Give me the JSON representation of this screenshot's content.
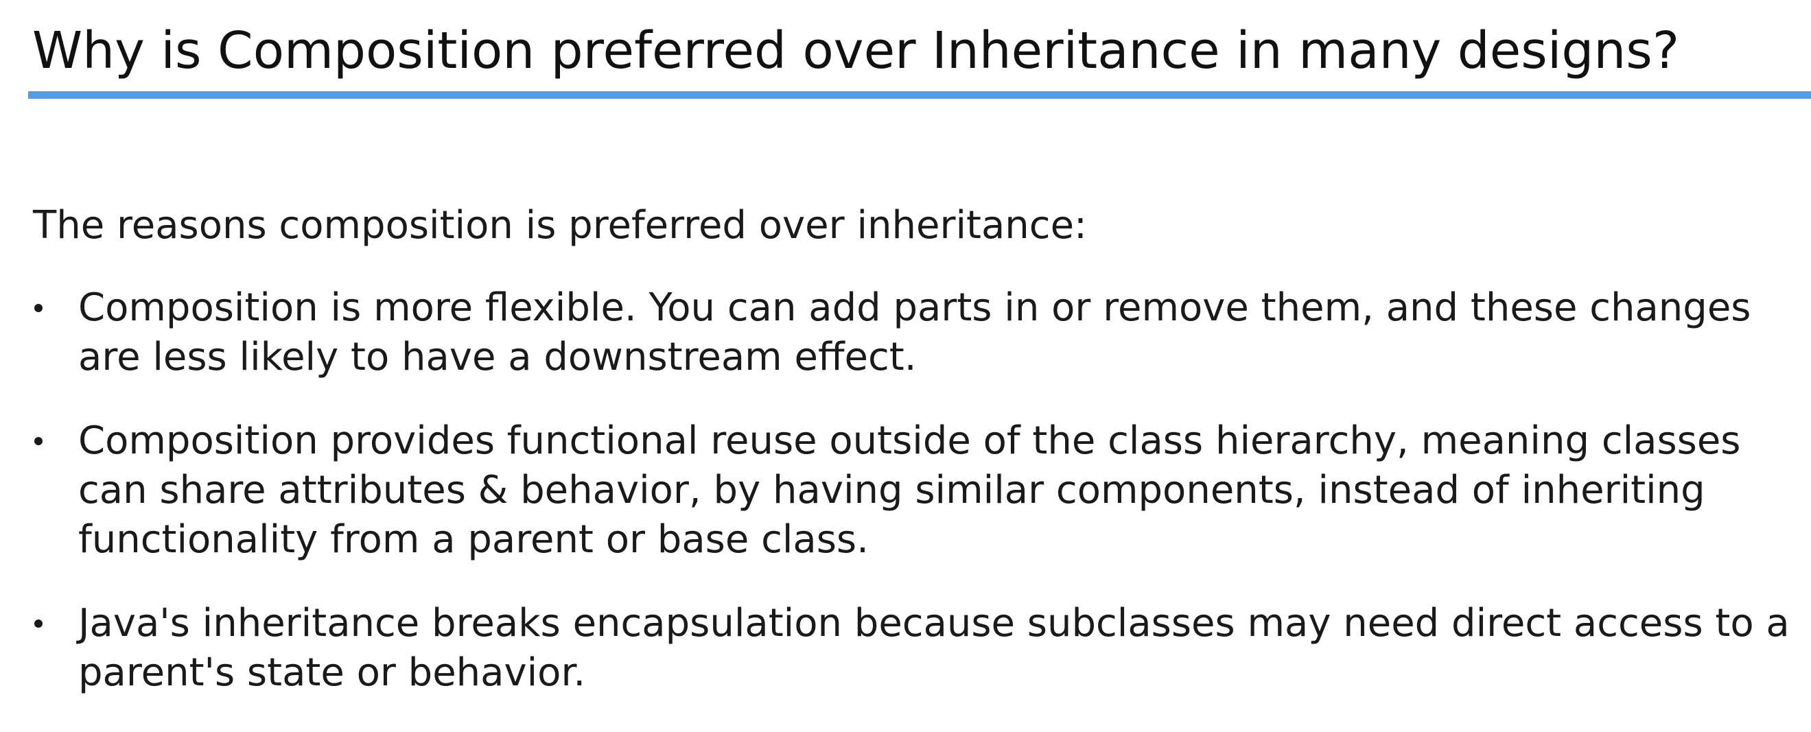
{
  "slide": {
    "title": "Why is Composition preferred over Inheritance in many designs?",
    "intro": "The reasons composition is preferred over inheritance:",
    "bullets": [
      {
        "lines": [
          "Composition is more flexible. You can add parts in or remove them, and these changes",
          "are less likely to have a downstream effect."
        ]
      },
      {
        "lines": [
          "Composition provides functional reuse outside of the class hierarchy, meaning classes",
          "can share attributes & behavior, by having similar components, instead of inheriting",
          "functionality from a parent or base class."
        ]
      },
      {
        "lines": [
          "Java's inheritance breaks encapsulation because subclasses may need direct access to a",
          "parent's state or behavior."
        ]
      }
    ]
  },
  "colors": {
    "accent_rule": "#4f9fe6",
    "text": "#1a1a1a",
    "background": "#ffffff"
  }
}
